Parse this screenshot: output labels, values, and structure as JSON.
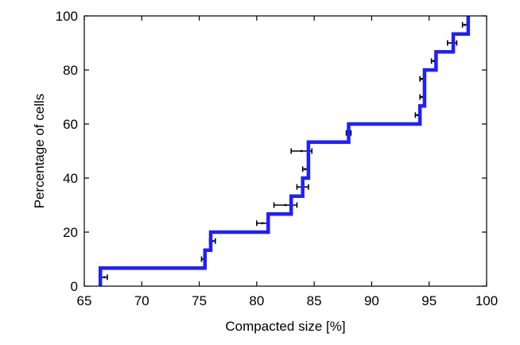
{
  "chart_data": {
    "type": "line",
    "subtype": "empirical-cdf-step-with-error-bars",
    "title": "",
    "xlabel": "Compacted size [%]",
    "ylabel": "Percentage of cells",
    "xlim": [
      65,
      100
    ],
    "ylim": [
      0,
      100
    ],
    "x_ticks": [
      "65",
      "70",
      "75",
      "80",
      "85",
      "90",
      "95",
      "100"
    ],
    "y_ticks": [
      "0",
      "20",
      "40",
      "60",
      "80",
      "100"
    ],
    "grid": false,
    "legend": "none",
    "colors": {
      "step_line": "#1f1fff",
      "error_bars": "#000000",
      "axes": "#000000"
    },
    "series": [
      {
        "steps": [
          {
            "x": 66.4,
            "y": 6.7
          },
          {
            "x": 75.5,
            "y": 13.3
          },
          {
            "x": 76.0,
            "y": 20.0
          },
          {
            "x": 81.0,
            "y": 26.7
          },
          {
            "x": 83.0,
            "y": 33.3
          },
          {
            "x": 84.0,
            "y": 40.0
          },
          {
            "x": 84.5,
            "y": 53.3
          },
          {
            "x": 88.0,
            "y": 60.0
          },
          {
            "x": 94.2,
            "y": 66.7
          },
          {
            "x": 94.6,
            "y": 80.0
          },
          {
            "x": 95.6,
            "y": 86.7
          },
          {
            "x": 97.1,
            "y": 93.3
          },
          {
            "x": 98.4,
            "y": 100.0
          }
        ],
        "error_bars": [
          {
            "y": 3.3,
            "center": 66.75,
            "low": 66.5,
            "high": 67.0
          },
          {
            "y": 10.0,
            "center": 75.4,
            "low": 75.2,
            "high": 75.6
          },
          {
            "y": 16.7,
            "center": 76.15,
            "low": 75.9,
            "high": 76.4
          },
          {
            "y": 23.3,
            "center": 80.5,
            "low": 80.0,
            "high": 81.0
          },
          {
            "y": 30.0,
            "center": 82.5,
            "low": 81.5,
            "high": 83.5
          },
          {
            "y": 36.7,
            "center": 84.0,
            "low": 83.5,
            "high": 84.5
          },
          {
            "y": 43.3,
            "center": 84.2,
            "low": 84.0,
            "high": 84.4
          },
          {
            "y": 50.0,
            "center": 83.9,
            "low": 83.0,
            "high": 84.8
          },
          {
            "y": 56.7,
            "center": 88.0,
            "low": 87.8,
            "high": 88.2
          },
          {
            "y": 63.3,
            "center": 94.0,
            "low": 93.8,
            "high": 94.2
          },
          {
            "y": 70.0,
            "center": 94.35,
            "low": 94.2,
            "high": 94.5
          },
          {
            "y": 76.7,
            "center": 94.35,
            "low": 94.2,
            "high": 94.5
          },
          {
            "y": 83.3,
            "center": 95.4,
            "low": 95.2,
            "high": 95.6
          },
          {
            "y": 90.0,
            "center": 97.0,
            "low": 96.6,
            "high": 97.4
          },
          {
            "y": 96.7,
            "center": 98.1,
            "low": 97.9,
            "high": 98.3
          }
        ]
      }
    ]
  }
}
